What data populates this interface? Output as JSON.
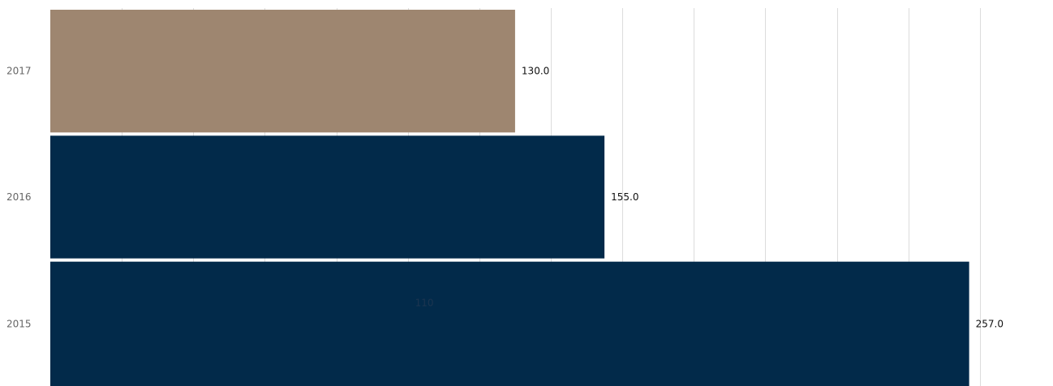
{
  "chart_data": {
    "type": "bar",
    "orientation": "horizontal",
    "categories": [
      "2017",
      "2016",
      "2015"
    ],
    "values": [
      130.0,
      155.0,
      257.0
    ],
    "value_labels": [
      "130.0",
      "155.0",
      "257.0"
    ],
    "inner_label": "110",
    "colors": [
      "#9e8670",
      "#022a4a",
      "#022a4a"
    ],
    "xlim": [
      0,
      280
    ],
    "grid": true,
    "title": "",
    "xlabel": "",
    "ylabel": ""
  }
}
